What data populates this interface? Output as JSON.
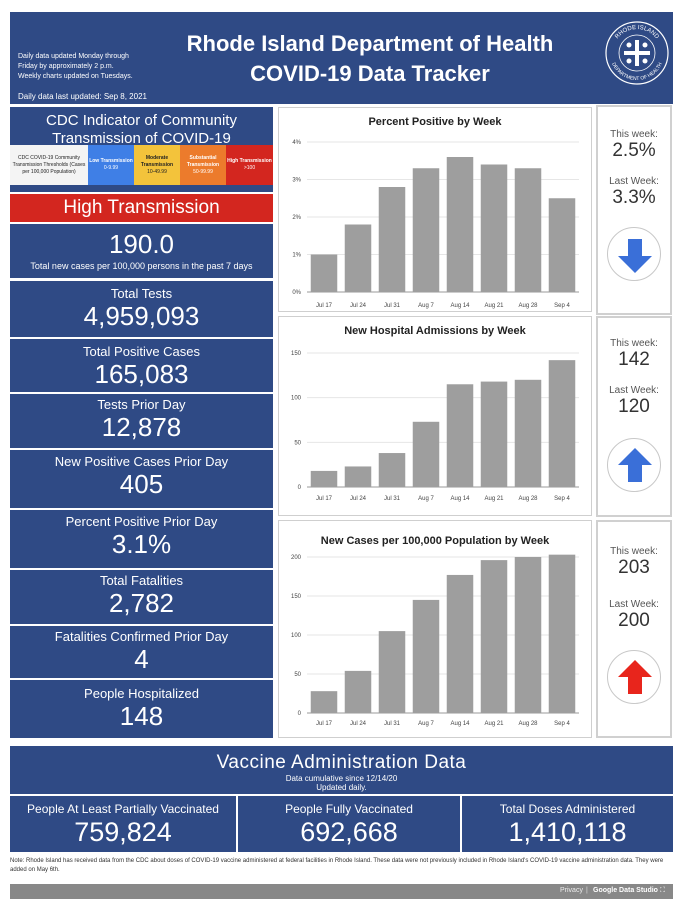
{
  "header": {
    "update_line1": "Daily data updated Monday through",
    "update_line2": "Friday by approximately 2 p.m.",
    "update_line3": "Weekly charts updated on Tuesdays.",
    "last_updated": "Daily data last updated: Sep 8, 2021",
    "title_line1": "Rhode Island Department of Health",
    "title_line2": "COVID-19 Data Tracker",
    "logo_text_top": "RHODE ISLAND",
    "logo_text_bottom": "DEPARTMENT OF HEALTH"
  },
  "cdc": {
    "title_line1": "CDC Indicator of Community",
    "title_line2": "Transmission of COVID-19",
    "threshold_label": "CDC COVID-19 Community Transmission Thresholds (Cases per 100,000 Population)",
    "levels": [
      {
        "name": "Low Transmission",
        "range": "0-9.99",
        "color": "#3f7fe6"
      },
      {
        "name": "Moderate Transmission",
        "range": "10-49.99",
        "color": "#f3c33b"
      },
      {
        "name": "Substantial Transmission",
        "range": "50-99.99",
        "color": "#ec7b2c"
      },
      {
        "name": "High Transmission",
        "range": ">100",
        "color": "#d3261f"
      }
    ],
    "status": "High Transmission",
    "status_color": "#d3261f",
    "rate_value": "190.0",
    "rate_label": "Total new cases per 100,000 persons in the past 7 days"
  },
  "stats": [
    {
      "label": "Total Tests",
      "value": "4,959,093"
    },
    {
      "label": "Total Positive Cases",
      "value": "165,083"
    },
    {
      "label": "Tests Prior Day",
      "value": "12,878"
    },
    {
      "label": "New Positive Cases Prior Day",
      "value": "405"
    },
    {
      "label": "Percent Positive Prior Day",
      "value": "3.1%"
    },
    {
      "label": "Total Fatalities",
      "value": "2,782"
    },
    {
      "label": "Fatalities Confirmed Prior Day",
      "value": "4"
    },
    {
      "label": "People Hospitalized",
      "value": "148"
    }
  ],
  "comparisons": [
    {
      "this_week_label": "This week:",
      "this_week": "2.5%",
      "last_week_label": "Last Week:",
      "last_week": "3.3%",
      "direction": "down",
      "arrow_color": "#3a6fd8"
    },
    {
      "this_week_label": "This week:",
      "this_week": "142",
      "last_week_label": "Last Week:",
      "last_week": "120",
      "direction": "up",
      "arrow_color": "#3a6fd8"
    },
    {
      "this_week_label": "This week:",
      "this_week": "203",
      "last_week_label": "Last Week:",
      "last_week": "200",
      "direction": "up",
      "arrow_color": "#e8251c"
    }
  ],
  "chart_data": [
    {
      "type": "bar",
      "title": "Percent Positive by Week",
      "categories": [
        "Jul 17",
        "Jul 24",
        "Jul 31",
        "Aug 7",
        "Aug 14",
        "Aug 21",
        "Aug 28",
        "Sep 4"
      ],
      "values": [
        1.0,
        1.8,
        2.8,
        3.3,
        3.6,
        3.4,
        3.3,
        2.5
      ],
      "ylim": [
        0,
        4
      ],
      "yticks": [
        "0%",
        "1%",
        "2%",
        "3%",
        "4%"
      ],
      "bar_color": "#9e9e9e"
    },
    {
      "type": "bar",
      "title": "New Hospital Admissions by Week",
      "categories": [
        "Jul 17",
        "Jul 24",
        "Jul 31",
        "Aug 7",
        "Aug 14",
        "Aug 21",
        "Aug 28",
        "Sep 4"
      ],
      "values": [
        18,
        23,
        38,
        73,
        115,
        118,
        120,
        142
      ],
      "ylim": [
        0,
        150
      ],
      "yticks": [
        "0",
        "50",
        "100",
        "150"
      ],
      "bar_color": "#9e9e9e"
    },
    {
      "type": "bar",
      "title": "New Cases per 100,000 Population by Week",
      "categories": [
        "Jul 17",
        "Jul 24",
        "Jul 31",
        "Aug 7",
        "Aug 14",
        "Aug 21",
        "Aug 28",
        "Sep 4"
      ],
      "values": [
        28,
        54,
        105,
        145,
        177,
        196,
        200,
        203
      ],
      "ylim": [
        0,
        200
      ],
      "yticks": [
        "0",
        "50",
        "100",
        "150",
        "200"
      ],
      "bar_color": "#9e9e9e"
    }
  ],
  "vaccine": {
    "title": "Vaccine Administration Data",
    "subtitle1": "Data cumulative since 12/14/20",
    "subtitle2": "Updated daily.",
    "items": [
      {
        "label": "People At Least Partially Vaccinated",
        "value": "759,824"
      },
      {
        "label": "People Fully Vaccinated",
        "value": "692,668"
      },
      {
        "label": "Total Doses Administered",
        "value": "1,410,118"
      }
    ]
  },
  "note": "Note: Rhode Island has received data from the CDC about doses of COVID-19 vaccine administered at federal facilities in Rhode Island. These data were not previously included in Rhode Island's COVID-19 vaccine administration data. They were added on May 6th.",
  "footer": {
    "privacy": "Privacy",
    "brand": "Google Data Studio"
  }
}
